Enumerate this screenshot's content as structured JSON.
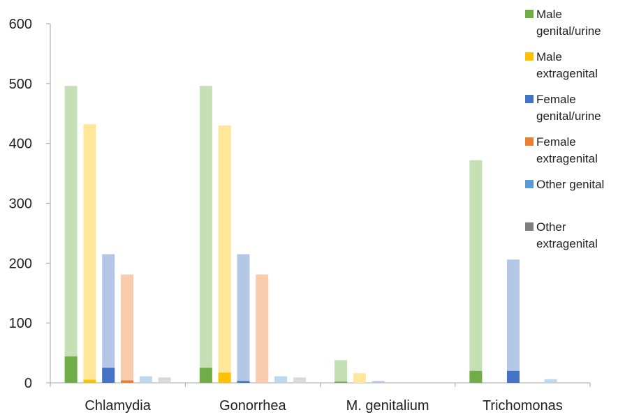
{
  "chart_data": {
    "type": "bar",
    "categories": [
      "Chlamydia",
      "Gonorrhea",
      "M. genitalium",
      "Trichomonas"
    ],
    "ylim": [
      0,
      600
    ],
    "yticks": [
      0,
      100,
      200,
      300,
      400,
      500,
      600
    ],
    "grid": false,
    "legend_position": "right",
    "series": [
      {
        "name": "Male genital/urine",
        "name_lines": [
          "Male",
          "genital/urine"
        ],
        "color": "#70ad47",
        "light_color": "#c5e0b4",
        "total": [
          496,
          496,
          38,
          372
        ],
        "positive": [
          44,
          25,
          2,
          20
        ]
      },
      {
        "name": "Male extragenital",
        "name_lines": [
          "Male",
          "extragenital"
        ],
        "color": "#ffc000",
        "light_color": "#ffe699",
        "total": [
          432,
          430,
          16,
          0
        ],
        "positive": [
          5,
          17,
          0,
          0
        ]
      },
      {
        "name": "Female genital/urine",
        "name_lines": [
          "Female",
          "genital/urine"
        ],
        "color": "#4472c4",
        "light_color": "#b4c7e7",
        "total": [
          215,
          215,
          3,
          206
        ],
        "positive": [
          25,
          3,
          0,
          20
        ]
      },
      {
        "name": "Female extragenital",
        "name_lines": [
          "Female",
          "extragenital"
        ],
        "color": "#ed7d31",
        "light_color": "#f8cbad",
        "total": [
          181,
          181,
          0,
          0
        ],
        "positive": [
          4,
          0,
          0,
          0
        ]
      },
      {
        "name": "Other genital",
        "name_lines": [
          "Other genital"
        ],
        "color": "#5b9bd5",
        "light_color": "#bdd7ee",
        "total": [
          11,
          11,
          0,
          6
        ],
        "positive": [
          0,
          0,
          0,
          0
        ]
      },
      {
        "name": "Other extragenital",
        "name_lines": [
          "Other",
          "extragenital"
        ],
        "color": "#7f7f7f",
        "light_color": "#d9d9d9",
        "total": [
          9,
          9,
          0,
          0
        ],
        "positive": [
          0,
          0,
          0,
          0
        ]
      }
    ]
  }
}
